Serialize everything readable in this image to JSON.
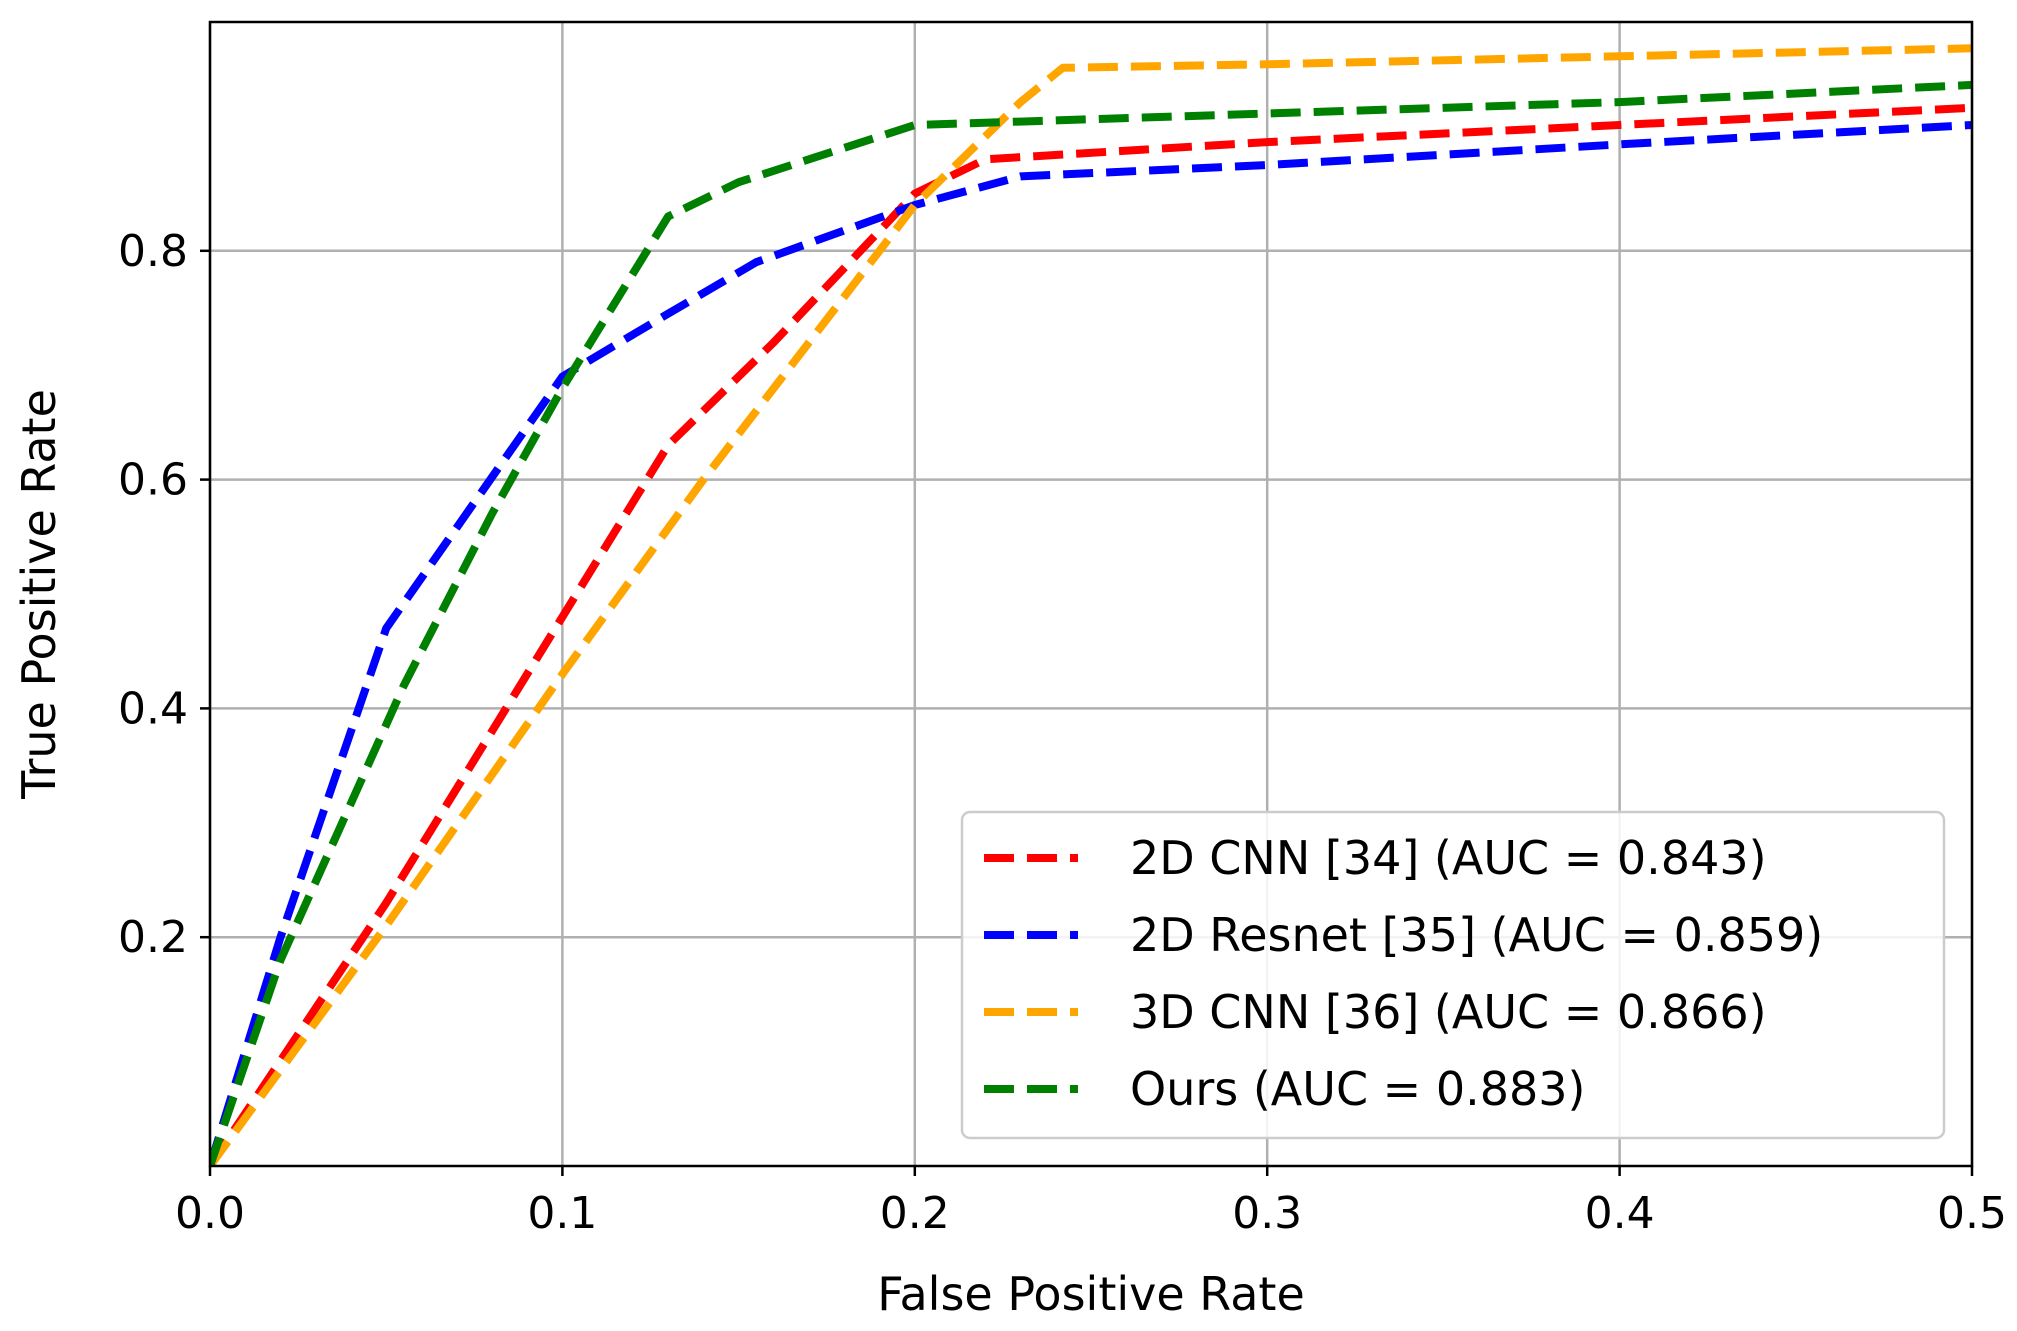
{
  "chart_data": {
    "type": "line",
    "title": "",
    "xlabel": "False Positive Rate",
    "ylabel": "True Positive Rate",
    "xlim": [
      0.0,
      0.5
    ],
    "ylim": [
      0.0,
      1.0
    ],
    "xticks": [
      0.0,
      0.1,
      0.2,
      0.3,
      0.4,
      0.5
    ],
    "xtick_labels": [
      "0.0",
      "0.1",
      "0.2",
      "0.3",
      "0.4",
      "0.5"
    ],
    "yticks": [
      0.2,
      0.4,
      0.6,
      0.8
    ],
    "ytick_labels": [
      "0.2",
      "0.4",
      "0.6",
      "0.8"
    ],
    "grid": true,
    "legend_position": "lower-right",
    "series": [
      {
        "name": "2D CNN [34] (AUC = 0.843)",
        "color": "#ff0000",
        "linestyle": "dashed",
        "x": [
          0.0,
          0.05,
          0.1,
          0.13,
          0.16,
          0.2,
          0.22,
          0.3,
          0.4,
          0.5
        ],
        "y": [
          0.0,
          0.23,
          0.48,
          0.63,
          0.72,
          0.85,
          0.88,
          0.895,
          0.91,
          0.925
        ]
      },
      {
        "name": "2D Resnet [35] (AUC = 0.859)",
        "color": "#0000ff",
        "linestyle": "dashed",
        "x": [
          0.0,
          0.02,
          0.05,
          0.1,
          0.13,
          0.155,
          0.2,
          0.23,
          0.3,
          0.4,
          0.5
        ],
        "y": [
          0.0,
          0.2,
          0.47,
          0.69,
          0.745,
          0.79,
          0.84,
          0.865,
          0.875,
          0.893,
          0.91
        ]
      },
      {
        "name": "3D CNN [36] (AUC = 0.866)",
        "color": "#ffa500",
        "linestyle": "dashed",
        "x": [
          0.0,
          0.05,
          0.1,
          0.14,
          0.2,
          0.23,
          0.242,
          0.3,
          0.4,
          0.5
        ],
        "y": [
          0.0,
          0.21,
          0.43,
          0.6,
          0.84,
          0.93,
          0.96,
          0.963,
          0.97,
          0.977
        ]
      },
      {
        "name": "Ours (AUC = 0.883)",
        "color": "#008000",
        "linestyle": "dashed",
        "x": [
          0.0,
          0.02,
          0.055,
          0.08,
          0.1,
          0.13,
          0.15,
          0.2,
          0.3,
          0.4,
          0.5
        ],
        "y": [
          0.0,
          0.18,
          0.42,
          0.57,
          0.68,
          0.83,
          0.86,
          0.91,
          0.92,
          0.93,
          0.945
        ]
      }
    ]
  }
}
